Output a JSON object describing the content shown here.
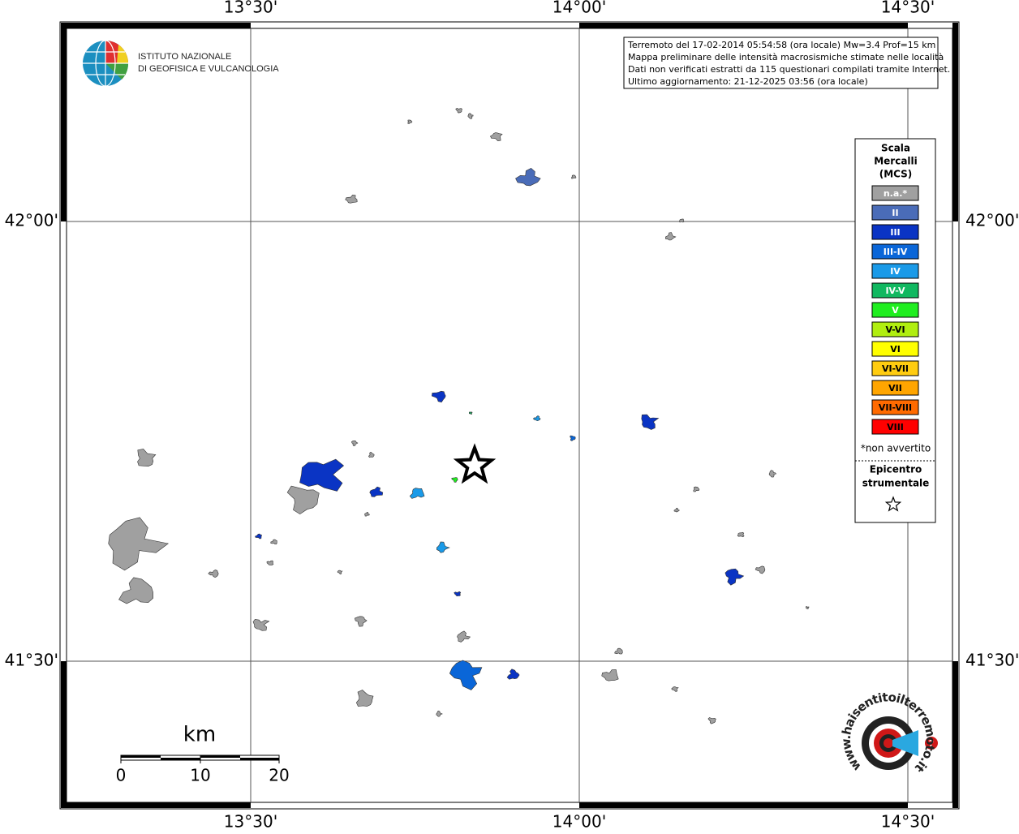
{
  "axes": {
    "top": [
      "13°30'",
      "14°00'",
      "14°30'"
    ],
    "bottom": [
      "13°30'",
      "14°00'",
      "14°30'"
    ],
    "left": [
      "42°00'",
      "41°30'"
    ],
    "right": [
      "42°00'",
      "41°30'"
    ]
  },
  "logo": {
    "line1": "ISTITUTO NAZIONALE",
    "line2": "DI GEOFISICA E VULCANOLOGIA"
  },
  "info": {
    "lines": [
      "Terremoto del 17-02-2014 05:54:58 (ora locale) Mw=3.4 Prof=15 km",
      "Mappa preliminare delle intensità macrosismiche stimate nelle località",
      "Dati non verificati estratti da 115 questionari compilati tramite Internet.",
      "Ultimo aggiornamento: 21-12-2025 03:56 (ora locale)"
    ]
  },
  "legend": {
    "title": [
      "Scala",
      "Mercalli",
      "(MCS)"
    ],
    "items": [
      {
        "label": "n.a.*",
        "color": "#a0a0a0"
      },
      {
        "label": "II",
        "color": "#4a6cb8"
      },
      {
        "label": "III",
        "color": "#0a34c4"
      },
      {
        "label": "III-IV",
        "color": "#0a66d8"
      },
      {
        "label": "IV",
        "color": "#1a9ae8"
      },
      {
        "label": "IV-V",
        "color": "#10b860"
      },
      {
        "label": "V",
        "color": "#20ee20"
      },
      {
        "label": "V-VI",
        "color": "#b0ee10"
      },
      {
        "label": "VI",
        "color": "#ffff00"
      },
      {
        "label": "VI-VII",
        "color": "#ffcc10"
      },
      {
        "label": "VII",
        "color": "#ffa500"
      },
      {
        "label": "VII-VIII",
        "color": "#ff6a00"
      },
      {
        "label": "VIII",
        "color": "#ff0000"
      }
    ],
    "footnote": "*non avvertito",
    "epicenter": [
      "Epicentro",
      "strumentale"
    ]
  },
  "scale_bar": {
    "unit": "km",
    "ticks": [
      "0",
      "10",
      "20"
    ]
  },
  "website": "www.haisentitoilterremoto.it"
}
